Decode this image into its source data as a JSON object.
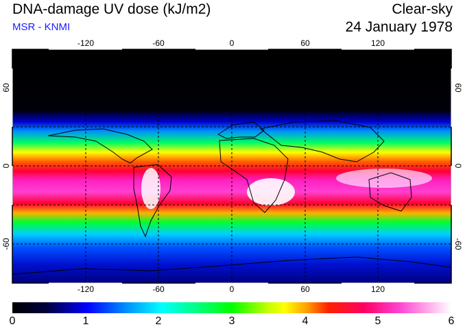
{
  "header": {
    "title": "DNA-damage UV dose (kJ/m2)",
    "subtitle": "MSR - KNMI",
    "sky_condition": "Clear-sky",
    "date": "24 January 1978"
  },
  "map": {
    "projection": "equirectangular",
    "lon_range": [
      -180,
      180
    ],
    "lat_range": [
      -90,
      90
    ],
    "lon_ticks": [
      "-120",
      "-60",
      "0",
      "60",
      "120"
    ],
    "lat_ticks": [
      "60",
      "0",
      "-60"
    ],
    "gridlines": "dashed",
    "land_outline_color": "#000000"
  },
  "colorbar": {
    "ticks": [
      "0",
      "1",
      "2",
      "3",
      "4",
      "5",
      "6"
    ],
    "range": [
      0,
      6
    ]
  }
}
